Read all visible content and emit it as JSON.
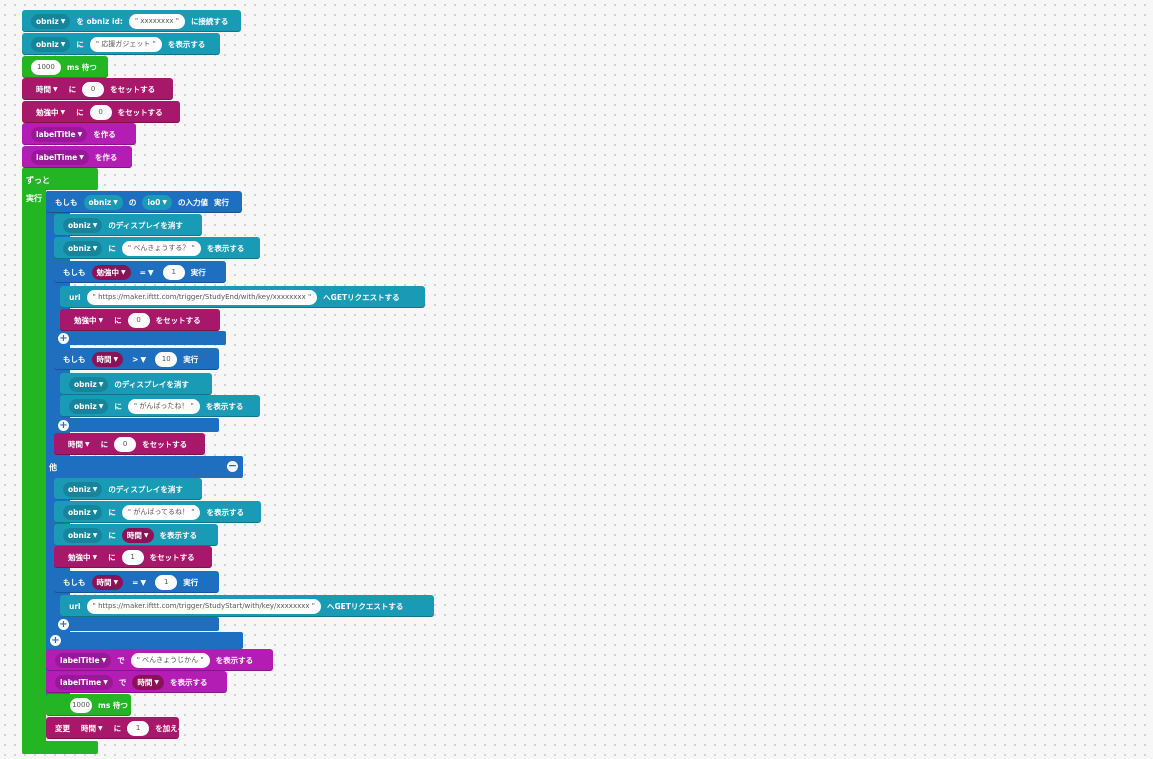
{
  "colors": {
    "obniz": "#1a9bb5",
    "variable": "#a8186a",
    "wait": "#23b523",
    "control": "#1f6fc0",
    "label": "#b31db3"
  },
  "icons": {
    "dropdown": "▼",
    "add": "+",
    "remove": "−"
  },
  "b1": {
    "obj": "obniz",
    "t1": "を obniz id:",
    "id": "xxxxxxxx",
    "t2": "に接続する"
  },
  "b2": {
    "obj": "obniz",
    "t1": "に",
    "str": "応援ガジェット",
    "t2": "を表示する"
  },
  "b3": {
    "num": "1000",
    "t1": "ms 待つ"
  },
  "b4": {
    "var": "時間",
    "t1": "に",
    "num": "0",
    "t2": "をセットする"
  },
  "b5": {
    "var": "勉強中",
    "t1": "に",
    "num": "0",
    "t2": "をセットする"
  },
  "b6": {
    "obj": "labelTitle",
    "t1": "を作る"
  },
  "b7": {
    "obj": "labelTime",
    "t1": "を作る"
  },
  "forever": {
    "label": "ずっと",
    "do": "実行"
  },
  "if1": {
    "if": "もしも",
    "obj": "obniz",
    "t1": "の",
    "pin": "io0",
    "t2": "の入力値",
    "do": "実行"
  },
  "c1": {
    "obj": "obniz",
    "t1": "のディスプレイを消す"
  },
  "c2": {
    "obj": "obniz",
    "t1": "に",
    "str": "べんきょうする？",
    "t2": "を表示する"
  },
  "if2": {
    "if": "もしも",
    "var": "勉強中",
    "op": "=",
    "num": "1",
    "do": "実行"
  },
  "c3": {
    "t0": "url",
    "url": "https://maker.ifttt.com/trigger/StudyEnd/with/key/xxxxxxxx",
    "t1": "へGETリクエストする"
  },
  "c4": {
    "var": "勉強中",
    "t1": "に",
    "num": "0",
    "t2": "をセットする"
  },
  "if3": {
    "if": "もしも",
    "var": "時間",
    "op": ">",
    "num": "10",
    "do": "実行"
  },
  "c5": {
    "obj": "obniz",
    "t1": "のディスプレイを消す"
  },
  "c6": {
    "obj": "obniz",
    "t1": "に",
    "str": "がんばったね！",
    "t2": "を表示する"
  },
  "c7": {
    "var": "時間",
    "t1": "に",
    "num": "0",
    "t2": "をセットする"
  },
  "else": {
    "label": "他"
  },
  "c8": {
    "obj": "obniz",
    "t1": "のディスプレイを消す"
  },
  "c9": {
    "obj": "obniz",
    "t1": "に",
    "str": "がんばってるね！",
    "t2": "を表示する"
  },
  "c10": {
    "obj": "obniz",
    "t1": "に",
    "var": "時間",
    "t2": "を表示する"
  },
  "c11": {
    "var": "勉強中",
    "t1": "に",
    "num": "1",
    "t2": "をセットする"
  },
  "if4": {
    "if": "もしも",
    "var": "時間",
    "op": "=",
    "num": "1",
    "do": "実行"
  },
  "c12": {
    "t0": "url",
    "url": "https://maker.ifttt.com/trigger/StudyStart/with/key/xxxxxxxx",
    "t1": "へGETリクエストする"
  },
  "c13": {
    "obj": "labelTitle",
    "t1": "で",
    "str": "べんきょうじかん",
    "t2": "を表示する"
  },
  "c14": {
    "obj": "labelTime",
    "t1": "で",
    "var": "時間",
    "t2": "を表示する"
  },
  "c15": {
    "num": "1000",
    "t1": "ms 待つ"
  },
  "c16": {
    "t0": "変更",
    "var": "時間",
    "t1": "に",
    "num": "1",
    "t2": "を加える"
  }
}
